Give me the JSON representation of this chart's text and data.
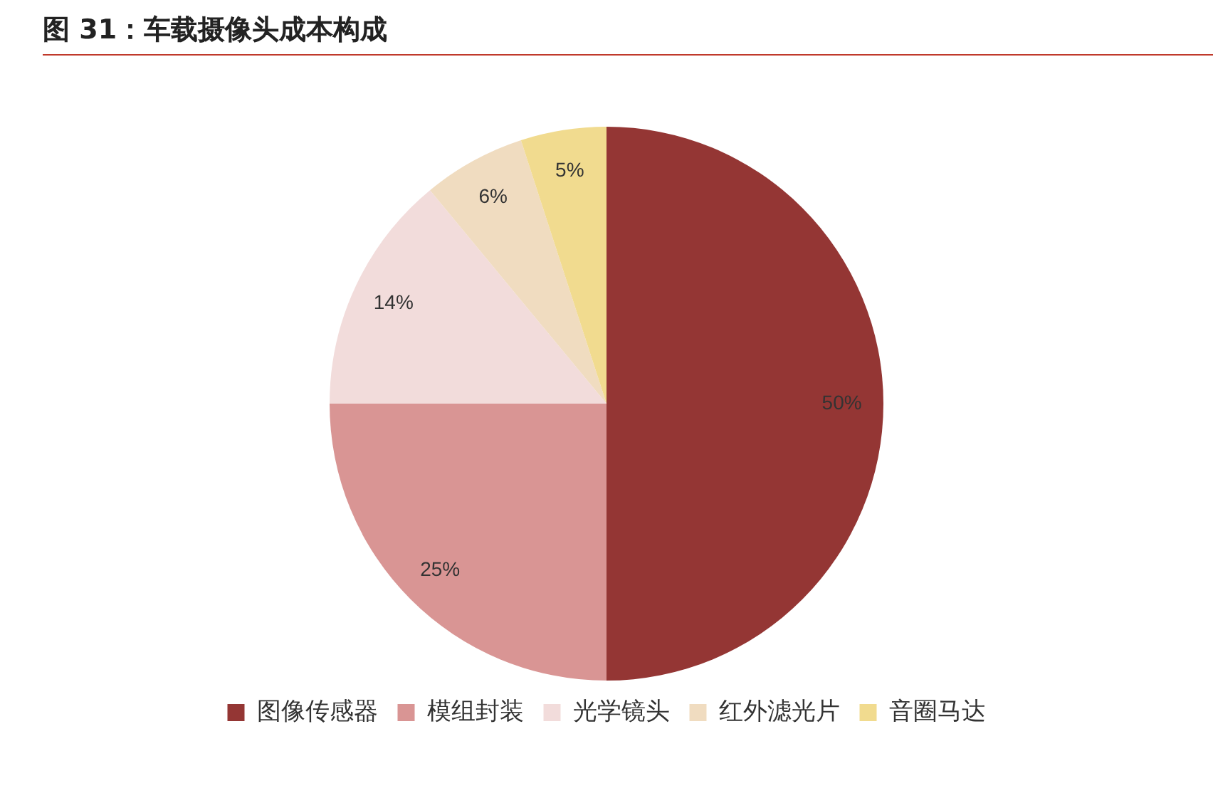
{
  "chart_data": {
    "type": "pie",
    "title": "图 31：车载摄像头成本构成",
    "categories": [
      "图像传感器",
      "模组封装",
      "光学镜头",
      "红外滤光片",
      "音圈马达"
    ],
    "values": [
      50,
      25,
      14,
      6,
      5
    ],
    "colors": [
      "#943634",
      "#d99594",
      "#f2dcdb",
      "#f0dcc0",
      "#f1db8f"
    ],
    "value_labels": [
      "50%",
      "25%",
      "14%",
      "6%",
      "5%"
    ],
    "legend": "bottom"
  }
}
